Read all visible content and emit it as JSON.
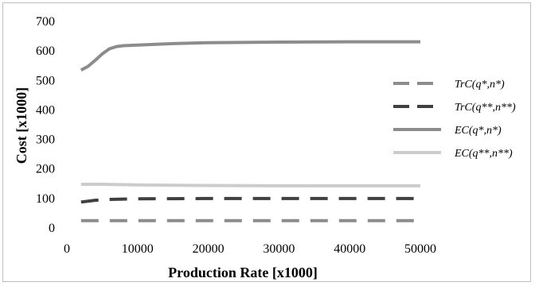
{
  "chart_data": {
    "type": "line",
    "xlabel": "Production Rate [x1000]",
    "ylabel": "Cost [x1000]",
    "xlim": [
      0,
      50000
    ],
    "ylim": [
      0,
      700
    ],
    "xticks": [
      0,
      10000,
      20000,
      30000,
      40000,
      50000
    ],
    "yticks": [
      0,
      100,
      200,
      300,
      400,
      500,
      600,
      700
    ],
    "grid": false,
    "legend_position": "right",
    "series": [
      {
        "name": "TrC(q*,n*)",
        "color": "#8c8c8c",
        "dash": "dashed",
        "x": [
          2000,
          10000,
          20000,
          30000,
          40000,
          50000
        ],
        "y": [
          25,
          25,
          25,
          25,
          25,
          25
        ]
      },
      {
        "name": "TrC(q**,n**)",
        "color": "#404040",
        "dash": "dashed",
        "x": [
          2000,
          4000,
          6000,
          8000,
          10000,
          20000,
          30000,
          40000,
          50000
        ],
        "y": [
          88,
          94,
          97,
          98,
          99,
          100,
          100,
          100,
          100
        ]
      },
      {
        "name": "EC(q*,n*)",
        "color": "#8c8c8c",
        "dash": "solid",
        "x": [
          2000,
          3000,
          4000,
          5000,
          6000,
          7000,
          8000,
          10000,
          15000,
          20000,
          30000,
          40000,
          50000
        ],
        "y": [
          535,
          548,
          568,
          590,
          607,
          615,
          618,
          620,
          625,
          628,
          630,
          631,
          631
        ]
      },
      {
        "name": "EC(q**,n**)",
        "color": "#cccccc",
        "dash": "solid",
        "x": [
          2000,
          5000,
          10000,
          20000,
          30000,
          40000,
          50000
        ],
        "y": [
          148,
          148,
          146,
          144,
          143,
          143,
          143
        ]
      }
    ]
  }
}
